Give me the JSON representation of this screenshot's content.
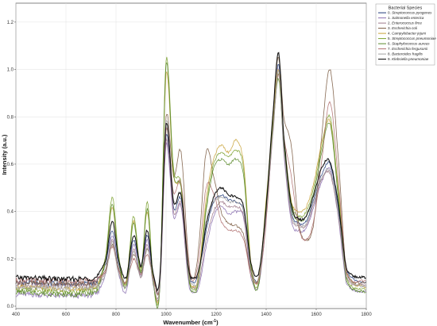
{
  "chart_data": {
    "type": "line",
    "xlabel": "Wavenumber (cm",
    "xlabel_sup": "-1",
    "xlabel_close": ")",
    "ylabel": "Intensity (a.u.)",
    "xlim": [
      400,
      1800
    ],
    "ylim": [
      -0.01,
      1.28
    ],
    "x_ticks": [
      400,
      600,
      800,
      1000,
      1200,
      1400,
      1600,
      1800
    ],
    "y_ticks": [
      0.0,
      0.2,
      0.4,
      0.6,
      0.8,
      1.0,
      1.2
    ],
    "grid": true,
    "legend_title": "Bacterial Species",
    "legend_position": "top-right",
    "peaks_x": [
      400,
      720,
      760,
      785,
      810,
      840,
      870,
      900,
      925,
      950,
      975,
      1000,
      1030,
      1060,
      1090,
      1110,
      1130,
      1160,
      1190,
      1220,
      1250,
      1280,
      1310,
      1340,
      1370,
      1400,
      1430,
      1450,
      1470,
      1500,
      1530,
      1560,
      1590,
      1620,
      1655,
      1690,
      1720,
      1800
    ],
    "series": [
      {
        "prefix": "0.",
        "name": "Streptococcus pyogenes",
        "color": "#1f3a7a",
        "values": [
          0.1,
          0.1,
          0.18,
          0.32,
          0.18,
          0.1,
          0.28,
          0.16,
          0.3,
          0.12,
          0.1,
          0.72,
          0.42,
          0.45,
          0.15,
          0.1,
          0.14,
          0.32,
          0.44,
          0.47,
          0.45,
          0.44,
          0.4,
          0.16,
          0.12,
          0.4,
          0.8,
          1.02,
          0.7,
          0.4,
          0.35,
          0.36,
          0.45,
          0.55,
          0.6,
          0.4,
          0.15,
          0.1
        ]
      },
      {
        "prefix": "1.",
        "name": "Salmonella enterica",
        "color": "#8a6fb0",
        "values": [
          0.05,
          0.05,
          0.14,
          0.3,
          0.14,
          0.06,
          0.26,
          0.13,
          0.28,
          0.08,
          0.07,
          0.68,
          0.38,
          0.42,
          0.1,
          0.06,
          0.08,
          0.25,
          0.38,
          0.42,
          0.39,
          0.4,
          0.37,
          0.12,
          0.09,
          0.37,
          0.78,
          1.0,
          0.65,
          0.36,
          0.32,
          0.33,
          0.42,
          0.52,
          0.58,
          0.36,
          0.1,
          0.06
        ]
      },
      {
        "prefix": "2.",
        "name": "Enterococcus firce",
        "color": "#9e7a8a",
        "values": [
          0.09,
          0.09,
          0.15,
          0.28,
          0.15,
          0.08,
          0.24,
          0.12,
          0.26,
          0.09,
          0.08,
          0.7,
          0.4,
          0.43,
          0.12,
          0.08,
          0.1,
          0.28,
          0.4,
          0.44,
          0.42,
          0.42,
          0.38,
          0.14,
          0.11,
          0.38,
          0.76,
          0.98,
          0.66,
          0.38,
          0.34,
          0.34,
          0.43,
          0.53,
          0.56,
          0.37,
          0.12,
          0.09
        ]
      },
      {
        "prefix": "3.",
        "name": "Escherichia coli",
        "color": "#7a5a40",
        "values": [
          0.1,
          0.1,
          0.16,
          0.26,
          0.16,
          0.1,
          0.22,
          0.14,
          0.24,
          0.12,
          0.1,
          0.8,
          0.55,
          0.65,
          0.2,
          0.12,
          0.25,
          0.65,
          0.55,
          0.4,
          0.35,
          0.34,
          0.3,
          0.14,
          0.12,
          0.4,
          0.85,
          1.05,
          0.8,
          0.68,
          0.35,
          0.28,
          0.35,
          0.7,
          1.0,
          0.6,
          0.15,
          0.1
        ]
      },
      {
        "prefix": "4.",
        "name": "Campylobacter jejuni",
        "color": "#c9a33a",
        "values": [
          0.08,
          0.08,
          0.2,
          0.42,
          0.2,
          0.1,
          0.36,
          0.16,
          0.4,
          0.1,
          0.09,
          0.98,
          0.55,
          0.5,
          0.15,
          0.08,
          0.14,
          0.45,
          0.62,
          0.68,
          0.65,
          0.7,
          0.6,
          0.18,
          0.12,
          0.45,
          0.82,
          1.0,
          0.72,
          0.45,
          0.4,
          0.42,
          0.52,
          0.68,
          0.78,
          0.48,
          0.14,
          0.08
        ]
      },
      {
        "prefix": "5.",
        "name": "Streptococcus pneumoniae",
        "color": "#7aa02e",
        "values": [
          0.07,
          0.07,
          0.22,
          0.46,
          0.22,
          0.09,
          0.38,
          0.15,
          0.44,
          0.1,
          0.08,
          1.04,
          0.58,
          0.52,
          0.14,
          0.07,
          0.12,
          0.42,
          0.6,
          0.65,
          0.63,
          0.66,
          0.58,
          0.16,
          0.1,
          0.44,
          0.8,
          0.98,
          0.7,
          0.44,
          0.38,
          0.4,
          0.5,
          0.66,
          0.8,
          0.46,
          0.12,
          0.07
        ]
      },
      {
        "prefix": "6.",
        "name": "Staphylococcus aureus",
        "color": "#5a8a2a",
        "values": [
          0.06,
          0.06,
          0.2,
          0.43,
          0.2,
          0.08,
          0.35,
          0.14,
          0.41,
          0.09,
          0.07,
          1.02,
          0.56,
          0.5,
          0.13,
          0.06,
          0.11,
          0.4,
          0.58,
          0.62,
          0.6,
          0.62,
          0.55,
          0.15,
          0.09,
          0.42,
          0.78,
          0.96,
          0.68,
          0.42,
          0.36,
          0.38,
          0.48,
          0.64,
          0.77,
          0.44,
          0.11,
          0.06
        ]
      },
      {
        "prefix": "7.",
        "name": "Escherichia fergusonii",
        "color": "#b07070",
        "values": [
          0.11,
          0.11,
          0.15,
          0.25,
          0.15,
          0.1,
          0.2,
          0.13,
          0.22,
          0.11,
          0.1,
          0.74,
          0.48,
          0.52,
          0.18,
          0.11,
          0.2,
          0.5,
          0.48,
          0.36,
          0.32,
          0.32,
          0.28,
          0.13,
          0.11,
          0.36,
          0.78,
          0.98,
          0.72,
          0.55,
          0.33,
          0.28,
          0.36,
          0.6,
          0.86,
          0.52,
          0.14,
          0.11
        ]
      },
      {
        "prefix": "8.",
        "name": "Bacteroides fragilis",
        "color": "#a0a0a0",
        "values": [
          0.08,
          0.08,
          0.14,
          0.27,
          0.14,
          0.08,
          0.23,
          0.12,
          0.25,
          0.09,
          0.08,
          0.78,
          0.45,
          0.47,
          0.14,
          0.09,
          0.12,
          0.36,
          0.44,
          0.46,
          0.44,
          0.44,
          0.4,
          0.15,
          0.12,
          0.39,
          0.77,
          0.99,
          0.67,
          0.39,
          0.34,
          0.35,
          0.44,
          0.54,
          0.57,
          0.38,
          0.13,
          0.08
        ]
      },
      {
        "prefix": "9.",
        "name": "Klebsiella pneumoniae",
        "color": "#000000",
        "values": [
          0.12,
          0.12,
          0.2,
          0.36,
          0.2,
          0.12,
          0.3,
          0.17,
          0.32,
          0.13,
          0.12,
          0.77,
          0.44,
          0.47,
          0.16,
          0.12,
          0.15,
          0.34,
          0.46,
          0.5,
          0.47,
          0.46,
          0.42,
          0.18,
          0.14,
          0.42,
          0.85,
          1.07,
          0.72,
          0.43,
          0.37,
          0.38,
          0.47,
          0.58,
          0.61,
          0.42,
          0.16,
          0.12
        ]
      }
    ]
  }
}
